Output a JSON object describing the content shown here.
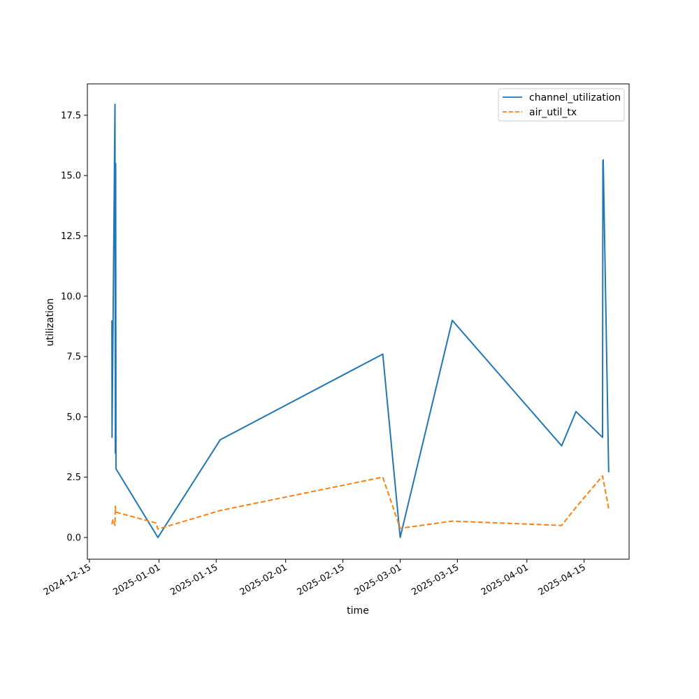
{
  "chart_data": {
    "type": "line",
    "title": "",
    "xlabel": "time",
    "ylabel": "utilization",
    "x_type": "date",
    "xlim": [
      "2024-12-14T12:00",
      "2025-04-26T00:00"
    ],
    "ylim": [
      -0.9,
      18.8
    ],
    "x_ticks": [
      "2024-12-15",
      "2025-01-01",
      "2025-01-15",
      "2025-02-01",
      "2025-02-15",
      "2025-03-01",
      "2025-03-15",
      "2025-04-01",
      "2025-04-15"
    ],
    "y_ticks": [
      "0.0",
      "2.5",
      "5.0",
      "7.5",
      "10.0",
      "12.5",
      "15.0",
      "17.5"
    ],
    "grid": false,
    "legend_position": "top-right",
    "series": [
      {
        "name": "channel_utilization",
        "color": "#1f77b4",
        "style": "solid",
        "points": [
          [
            "2024-12-20T12:00",
            9.0
          ],
          [
            "2024-12-20T13:00",
            4.15
          ],
          [
            "2024-12-21T06:00",
            17.95
          ],
          [
            "2024-12-21T08:00",
            3.5
          ],
          [
            "2024-12-21T10:00",
            15.5
          ],
          [
            "2024-12-21T12:00",
            2.85
          ],
          [
            "2024-12-31T18:00",
            0.0
          ],
          [
            "2025-01-16T00:00",
            4.05
          ],
          [
            "2025-02-24T18:00",
            7.6
          ],
          [
            "2025-03-01T00:00",
            0.0
          ],
          [
            "2025-03-13T18:00",
            9.0
          ],
          [
            "2025-04-09T12:00",
            3.8
          ],
          [
            "2025-04-13T00:00",
            5.22
          ],
          [
            "2025-04-19T12:00",
            4.15
          ],
          [
            "2025-04-19T14:00",
            15.6
          ],
          [
            "2025-04-19T16:00",
            15.65
          ],
          [
            "2025-04-21T00:00",
            2.7
          ]
        ]
      },
      {
        "name": "air_util_tx",
        "color": "#ff7f0e",
        "style": "dashed",
        "points": [
          [
            "2024-12-20T12:00",
            0.55
          ],
          [
            "2024-12-20T18:00",
            0.75
          ],
          [
            "2024-12-21T06:00",
            0.5
          ],
          [
            "2024-12-21T08:00",
            1.3
          ],
          [
            "2024-12-21T12:00",
            1.05
          ],
          [
            "2024-12-31T06:00",
            0.6
          ],
          [
            "2024-12-31T18:00",
            0.35
          ],
          [
            "2025-01-16T00:00",
            1.12
          ],
          [
            "2025-02-24T18:00",
            2.5
          ],
          [
            "2025-03-01T00:00",
            0.38
          ],
          [
            "2025-03-13T18:00",
            0.68
          ],
          [
            "2025-04-09T12:00",
            0.5
          ],
          [
            "2025-04-13T00:00",
            1.25
          ],
          [
            "2025-04-19T12:00",
            2.55
          ],
          [
            "2025-04-21T00:00",
            1.2
          ]
        ]
      }
    ]
  }
}
